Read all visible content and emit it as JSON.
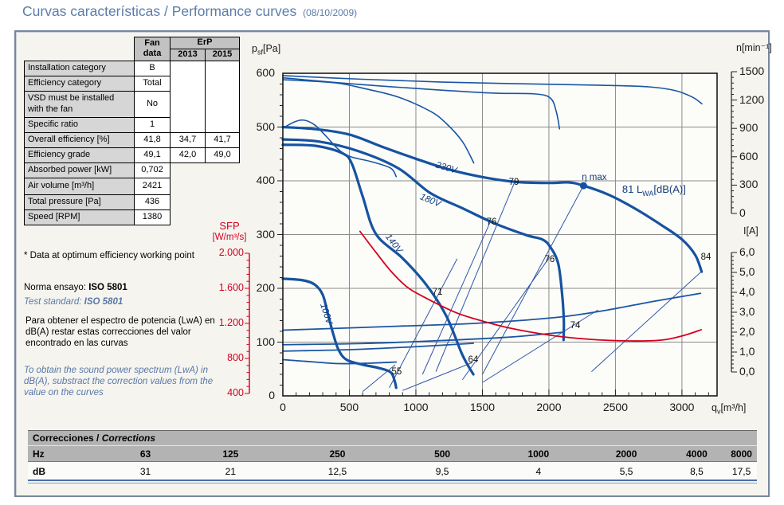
{
  "title": {
    "main": "Curvas características / Performance curves",
    "date": "(08/10/2009)"
  },
  "fan_table": {
    "header": {
      "fan_col": "Fan\ndata",
      "erp": "ErP",
      "year1": "2013",
      "year2": "2015"
    },
    "rows": [
      {
        "label": "Installation category",
        "fan": "B"
      },
      {
        "label": "Efficiency category",
        "fan": "Total"
      },
      {
        "label": "VSD must be installed with the fan",
        "fan": "No"
      },
      {
        "label": "Specific ratio",
        "fan": "1"
      },
      {
        "label": "Overall efficiency [%]",
        "fan": "41,8",
        "y2013": "34,7",
        "y2015": "41,7"
      },
      {
        "label": "Efficiency grade",
        "fan": "49,1",
        "y2013": "42,0",
        "y2015": "49,0"
      },
      {
        "label": "Absorbed power [kW]",
        "fan": "0,702"
      },
      {
        "label": "Air volume [m³/h]",
        "fan": "2421"
      },
      {
        "label": "Total pressure [Pa]",
        "fan": "436"
      },
      {
        "label": "Speed [RPM]",
        "fan": "1380"
      }
    ]
  },
  "notes": {
    "footnote": "* Data at optimum efficiency working point",
    "norma_prefix": "Norma ensayo: ",
    "norma_bold": "ISO 5801",
    "test_prefix": "Test standard: ",
    "test_bold": "ISO 5801",
    "para_es": "Para obtener el espectro de potencia (LwA) en dB(A) restar estas correcciones del valor encontrado en las curvas",
    "para_en": "To obtain the sound power spectrum (LwA) in dB(A), substract the correction values from the value on the curves"
  },
  "chart_data": {
    "type": "line",
    "title": "Fan performance curves: static pressure, speed, current and SFP vs air volume",
    "colors": {
      "curve_blue": "#1553a0",
      "thin_blue": "#2e57a8",
      "red": "#d4001e",
      "grid": "#8a8a8a",
      "plot_border": "#1c1c1c"
    },
    "axes": {
      "x": {
        "name": "air volume",
        "unit": "m3/h",
        "min": 0,
        "max": 3264,
        "px": [
          355,
          900
        ],
        "ticks": [
          0,
          500,
          1000,
          1500,
          2000,
          2500,
          3000
        ],
        "minor_step": 100,
        "label": {
          "pre": "q",
          "sub": "v",
          "post": "[m³/h]"
        }
      },
      "pressure": {
        "name": "static pressure",
        "unit": "Pa",
        "min": 0,
        "max": 600,
        "px": [
          497,
          92
        ],
        "ticks": [
          0,
          100,
          200,
          300,
          400,
          500,
          600
        ],
        "minor_step": 20,
        "label": {
          "pre": "p",
          "sub": "sf",
          "post": "[Pa]"
        }
      },
      "n": {
        "name": "speed",
        "unit": "min-1",
        "min": 0,
        "max": 1500,
        "px": [
          268,
          90
        ],
        "axis_x": 918,
        "minor_step": 60,
        "label_text": "n[min⁻¹]",
        "ticks": [
          {
            "v": 0,
            "t": "0"
          },
          {
            "v": 300,
            "t": "300"
          },
          {
            "v": 600,
            "t": "600"
          },
          {
            "v": 900,
            "t": "900"
          },
          {
            "v": 1200,
            "t": "1200"
          },
          {
            "v": 1500,
            "t": "1500"
          }
        ]
      },
      "current": {
        "name": "current",
        "unit": "A",
        "min": 0,
        "max": 6,
        "px": [
          467,
          317
        ],
        "axis_x": 918,
        "minor_step": 0.2,
        "label_text": "I[A]",
        "ticks": [
          {
            "v": 0,
            "t": "0,0"
          },
          {
            "v": 1,
            "t": "1,0"
          },
          {
            "v": 2,
            "t": "2,0"
          },
          {
            "v": 3,
            "t": "3,0"
          },
          {
            "v": 4,
            "t": "4,0"
          },
          {
            "v": 5,
            "t": "5,0"
          },
          {
            "v": 6,
            "t": "6,0"
          }
        ]
      },
      "sfp": {
        "name": "specific fan power",
        "unit": "W/m3/s",
        "min": 400,
        "max": 2000,
        "px": [
          494,
          318
        ],
        "axis_x": 313,
        "minor_step": 80,
        "label_line1": "SFP",
        "label_line2": "[W/m³/s]",
        "ticks": [
          {
            "v": 400,
            "t": "400"
          },
          {
            "v": 800,
            "t": "800"
          },
          {
            "v": 1200,
            "t": "1.200"
          },
          {
            "v": 1600,
            "t": "1.600"
          },
          {
            "v": 2000,
            "t": "2.000"
          }
        ]
      }
    },
    "series": [
      {
        "name": "pressure-230V",
        "axis": "pressure",
        "width": 3.2,
        "color": "#1553a0",
        "points": [
          [
            0,
            500
          ],
          [
            250,
            496
          ],
          [
            500,
            486
          ],
          [
            750,
            463
          ],
          [
            1000,
            441
          ],
          [
            1250,
            421
          ],
          [
            1500,
            407
          ],
          [
            1750,
            398
          ],
          [
            2000,
            396
          ],
          [
            2150,
            397
          ],
          [
            2260,
            391
          ],
          [
            2450,
            374
          ],
          [
            2650,
            348
          ],
          [
            2850,
            317
          ],
          [
            3000,
            291
          ],
          [
            3100,
            262
          ],
          [
            3148,
            231
          ]
        ]
      },
      {
        "name": "pressure-180V",
        "axis": "pressure",
        "width": 3.2,
        "color": "#1553a0",
        "points": [
          [
            0,
            477
          ],
          [
            270,
            473
          ],
          [
            570,
            455
          ],
          [
            870,
            423
          ],
          [
            1110,
            377
          ],
          [
            1350,
            349
          ],
          [
            1590,
            321
          ],
          [
            1830,
            299
          ],
          [
            1950,
            291
          ],
          [
            2010,
            277
          ],
          [
            2070,
            246
          ],
          [
            2100,
            187
          ],
          [
            2112,
            140
          ],
          [
            2110,
            104
          ]
        ]
      },
      {
        "name": "pressure-140V",
        "axis": "pressure",
        "width": 3.2,
        "color": "#1553a0",
        "points": [
          [
            0,
            467
          ],
          [
            250,
            465
          ],
          [
            450,
            451
          ],
          [
            520,
            431
          ],
          [
            600,
            371
          ],
          [
            700,
            301
          ],
          [
            900,
            256
          ],
          [
            1080,
            206
          ],
          [
            1230,
            148
          ],
          [
            1350,
            76
          ],
          [
            1432,
            40
          ]
        ]
      },
      {
        "name": "pressure-100V",
        "axis": "pressure",
        "width": 3.2,
        "color": "#1553a0",
        "points": [
          [
            0,
            218
          ],
          [
            150,
            215
          ],
          [
            240,
            207
          ],
          [
            300,
            188
          ],
          [
            340,
            151
          ],
          [
            380,
            114
          ],
          [
            420,
            85
          ],
          [
            480,
            67
          ],
          [
            600,
            58
          ],
          [
            720,
            52
          ],
          [
            810,
            44
          ],
          [
            840,
            28
          ],
          [
            852,
            15
          ]
        ]
      },
      {
        "name": "speed-230V",
        "axis": "n",
        "width": 1.6,
        "color": "#1a55a4",
        "points": [
          [
            0,
            1458
          ],
          [
            600,
            1420
          ],
          [
            1200,
            1390
          ],
          [
            1800,
            1372
          ],
          [
            2400,
            1356
          ],
          [
            2750,
            1340
          ],
          [
            2950,
            1300
          ],
          [
            3080,
            1230
          ],
          [
            3150,
            1160
          ]
        ]
      },
      {
        "name": "speed-180V",
        "axis": "n",
        "width": 1.6,
        "color": "#1a55a4",
        "points": [
          [
            0,
            1435
          ],
          [
            570,
            1366
          ],
          [
            1170,
            1307
          ],
          [
            1590,
            1273
          ],
          [
            1890,
            1265
          ],
          [
            2010,
            1222
          ],
          [
            2055,
            1080
          ],
          [
            2080,
            895
          ]
        ]
      },
      {
        "name": "speed-140V",
        "axis": "n",
        "width": 1.6,
        "color": "#1a55a4",
        "points": [
          [
            0,
            1415
          ],
          [
            390,
            1382
          ],
          [
            630,
            1316
          ],
          [
            870,
            1230
          ],
          [
            1110,
            1080
          ],
          [
            1230,
            950
          ],
          [
            1350,
            760
          ],
          [
            1435,
            535
          ]
        ]
      },
      {
        "name": "speed-100V",
        "axis": "n",
        "width": 1.6,
        "color": "#1a55a4",
        "points": [
          [
            0,
            903
          ],
          [
            90,
            970
          ],
          [
            160,
            987
          ],
          [
            240,
            936
          ],
          [
            330,
            810
          ],
          [
            420,
            675
          ],
          [
            510,
            600
          ],
          [
            660,
            550
          ],
          [
            810,
            480
          ],
          [
            852,
            390
          ]
        ]
      },
      {
        "name": "current-230V",
        "axis": "current",
        "width": 1.8,
        "color": "#1a55a4",
        "points": [
          [
            0,
            2.1
          ],
          [
            870,
            2.3
          ],
          [
            1470,
            2.45
          ],
          [
            2070,
            2.75
          ],
          [
            2430,
            3.1
          ],
          [
            2790,
            3.55
          ],
          [
            3140,
            3.95
          ]
        ]
      },
      {
        "name": "current-180V",
        "axis": "current",
        "width": 1.8,
        "color": "#1a55a4",
        "points": [
          [
            0,
            1.37
          ],
          [
            600,
            1.43
          ],
          [
            1200,
            1.58
          ],
          [
            1700,
            1.75
          ],
          [
            2110,
            2.0
          ]
        ]
      },
      {
        "name": "current-140V",
        "axis": "current",
        "width": 1.8,
        "color": "#1a55a4",
        "points": [
          [
            0,
            1.05
          ],
          [
            500,
            1.12
          ],
          [
            1000,
            1.27
          ],
          [
            1432,
            1.44
          ]
        ]
      },
      {
        "name": "current-100V",
        "axis": "current",
        "width": 1.8,
        "color": "#1a55a4",
        "points": [
          [
            0,
            0.62
          ],
          [
            240,
            0.5
          ],
          [
            420,
            0.42
          ],
          [
            640,
            0.44
          ],
          [
            852,
            0.5
          ]
        ]
      },
      {
        "name": "sfp",
        "axis": "sfp",
        "width": 1.8,
        "color": "#d4001e",
        "points": [
          [
            580,
            2250
          ],
          [
            690,
            2030
          ],
          [
            810,
            1800
          ],
          [
            930,
            1620
          ],
          [
            1050,
            1510
          ],
          [
            1290,
            1330
          ],
          [
            1470,
            1240
          ],
          [
            1710,
            1145
          ],
          [
            2010,
            1065
          ],
          [
            2310,
            1018
          ],
          [
            2610,
            1000
          ],
          [
            2850,
            1010
          ],
          [
            3020,
            1065
          ],
          [
            3145,
            1128
          ]
        ]
      }
    ],
    "system_lines": [
      {
        "name": "system-line-55",
        "points": [
          [
            600,
            8
          ],
          [
            845,
            58
          ]
        ]
      },
      {
        "name": "system-line-64",
        "points": [
          [
            900,
            10
          ],
          [
            1425,
            62
          ]
        ]
      },
      {
        "name": "system-line-71",
        "points": [
          [
            800,
            15
          ],
          [
            1310,
            255
          ]
        ]
      },
      {
        "name": "system-line-74",
        "points": [
          [
            1500,
            25
          ],
          [
            2370,
            160
          ]
        ]
      },
      {
        "name": "system-line-76a",
        "points": [
          [
            1050,
            40
          ],
          [
            1565,
            327
          ]
        ]
      },
      {
        "name": "system-line-76b",
        "points": [
          [
            1350,
            30
          ],
          [
            2005,
            258
          ]
        ]
      },
      {
        "name": "system-line-79",
        "points": [
          [
            1150,
            45
          ],
          [
            1745,
            399
          ]
        ]
      },
      {
        "name": "system-line-eta",
        "points": [
          [
            1500,
            40
          ],
          [
            2260,
            391
          ]
        ]
      },
      {
        "name": "system-line-84",
        "points": [
          [
            2320,
            45
          ],
          [
            3150,
            232
          ]
        ]
      }
    ],
    "eta_max_point": {
      "qv": 2260,
      "p": 391
    },
    "labels": [
      {
        "text": "230V",
        "qv": 1228,
        "p": 424,
        "rot": 17,
        "cls": "voltage"
      },
      {
        "text": "180V",
        "qv": 1108,
        "p": 363,
        "rot": 22,
        "cls": "voltage"
      },
      {
        "text": "140V",
        "qv": 832,
        "p": 283,
        "rot": 52,
        "cls": "voltage"
      },
      {
        "text": "100V",
        "qv": 323,
        "p": 153,
        "rot": 72,
        "cls": "voltage"
      },
      {
        "text": "79",
        "qv": 1737,
        "p": 397,
        "rot": 0,
        "cls": "num"
      },
      {
        "text": "76",
        "qv": 1569,
        "p": 323,
        "rot": 0,
        "cls": "num"
      },
      {
        "text": "76",
        "qv": 2006,
        "p": 253,
        "rot": 0,
        "cls": "num"
      },
      {
        "text": "71",
        "qv": 1162,
        "p": 193,
        "rot": 0,
        "cls": "num"
      },
      {
        "text": "74",
        "qv": 2198,
        "p": 130,
        "rot": 0,
        "cls": "num"
      },
      {
        "text": "64",
        "qv": 1431,
        "p": 67,
        "rot": 0,
        "cls": "num"
      },
      {
        "text": "55",
        "qv": 856,
        "p": 44,
        "rot": 0,
        "cls": "num"
      },
      {
        "text": "84",
        "qv": 3180,
        "p": 258,
        "rot": 0,
        "cls": "num"
      },
      {
        "text": "η max",
        "qv": 2341,
        "p": 406,
        "rot": 0,
        "cls": "eta"
      }
    ],
    "lwa_label": {
      "pre": "81 L",
      "sub": "WA",
      "post": "[dB(A)]",
      "qv": 2790,
      "p": 382
    }
  },
  "corrections": {
    "title_bold": "Correcciones /",
    "title_italic": " Corrections",
    "row1_label": "Hz",
    "row2_label": "dB",
    "hz": [
      "63",
      "125",
      "250",
      "500",
      "1000",
      "2000",
      "4000",
      "8000"
    ],
    "db": [
      "31",
      "21",
      "12,5",
      "9,5",
      "4",
      "5,5",
      "8,5",
      "17,5"
    ]
  }
}
